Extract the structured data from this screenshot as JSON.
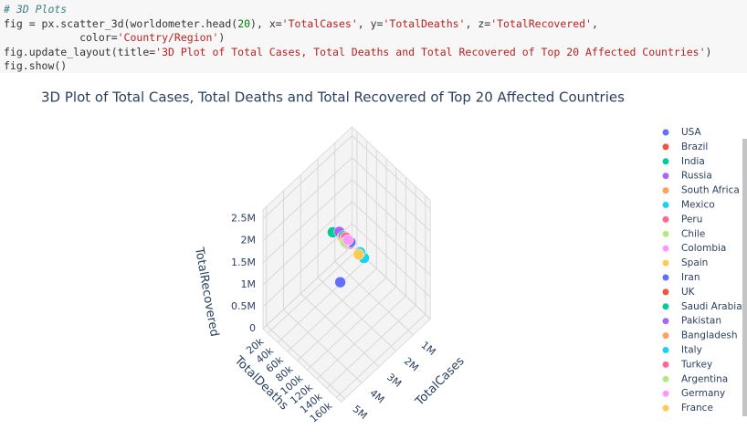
{
  "code": {
    "lines": [
      "# 3D Plots",
      "fig = px.scatter_3d(worldometer.head(20), x='TotalCases', y='TotalDeaths', z='TotalRecovered',",
      "            color='Country/Region')",
      "fig.update_layout(title='3D Plot of Total Cases, Total Deaths and Total Recovered of Top 20 Affected Countries')",
      "fig.show()"
    ]
  },
  "chart_data": {
    "type": "scatter3d",
    "title": "3D Plot of Total Cases, Total Deaths and Total Recovered of Top 20 Affected Countries",
    "x_label": "TotalCases",
    "y_label": "TotalDeaths",
    "z_label": "TotalRecovered",
    "xlim": [
      0,
      5200000
    ],
    "ylim": [
      10000,
      170000
    ],
    "zlim": [
      0,
      2700000
    ],
    "xticks": [
      {
        "value": 1000000,
        "label": "1M"
      },
      {
        "value": 2000000,
        "label": "2M"
      },
      {
        "value": 3000000,
        "label": "3M"
      },
      {
        "value": 4000000,
        "label": "4M"
      },
      {
        "value": 5000000,
        "label": "5M"
      }
    ],
    "yticks": [
      {
        "value": 20000,
        "label": "20k"
      },
      {
        "value": 40000,
        "label": "40k"
      },
      {
        "value": 60000,
        "label": "60k"
      },
      {
        "value": 80000,
        "label": "80k"
      },
      {
        "value": 100000,
        "label": "100k"
      },
      {
        "value": 120000,
        "label": "120k"
      },
      {
        "value": 140000,
        "label": "140k"
      },
      {
        "value": 160000,
        "label": "160k"
      }
    ],
    "zticks": [
      0,
      {
        "value": 500000,
        "label": "0.5M"
      },
      {
        "value": 1000000,
        "label": "1M"
      },
      {
        "value": 1500000,
        "label": "1.5M"
      },
      {
        "value": 2000000,
        "label": "2M"
      },
      {
        "value": 2500000,
        "label": "2.5M"
      }
    ],
    "grid": true,
    "series": [
      {
        "name": "USA",
        "color": "#636efa",
        "x": [
          5030000
        ],
        "y": [
          162000
        ],
        "z": [
          2580000
        ]
      },
      {
        "name": "Brazil",
        "color": "#ef553b",
        "x": [
          2900000
        ],
        "y": [
          98600
        ],
        "z": [
          2050000
        ]
      },
      {
        "name": "India",
        "color": "#00cc96",
        "x": [
          2030000
        ],
        "y": [
          41600
        ],
        "z": [
          1370000
        ]
      },
      {
        "name": "Russia",
        "color": "#ab63fa",
        "x": [
          871000
        ],
        "y": [
          14600
        ],
        "z": [
          676000
        ]
      },
      {
        "name": "South Africa",
        "color": "#ffa15a",
        "x": [
          538000
        ],
        "y": [
          9600
        ],
        "z": [
          387000
        ]
      },
      {
        "name": "Mexico",
        "color": "#19d3f3",
        "x": [
          462000
        ],
        "y": [
          50500
        ],
        "z": [
          308000
        ]
      },
      {
        "name": "Peru",
        "color": "#ff6692",
        "x": [
          455000
        ],
        "y": [
          20400
        ],
        "z": [
          310000
        ]
      },
      {
        "name": "Chile",
        "color": "#b6e880",
        "x": [
          366000
        ],
        "y": [
          9900
        ],
        "z": [
          340000
        ]
      },
      {
        "name": "Colombia",
        "color": "#ff97ff",
        "x": [
          357000
        ],
        "y": [
          11900
        ],
        "z": [
          192000
        ]
      },
      {
        "name": "Spain",
        "color": "#fecb52",
        "x": [
          354000
        ],
        "y": [
          28500
        ],
        "z": [
          null
        ]
      },
      {
        "name": "Iran",
        "color": "#636efa",
        "x": [
          320000
        ],
        "y": [
          17900
        ],
        "z": [
          277000
        ]
      },
      {
        "name": "UK",
        "color": "#ef553b",
        "x": [
          308000
        ],
        "y": [
          46400
        ],
        "z": [
          null
        ]
      },
      {
        "name": "Saudi Arabia",
        "color": "#00cc96",
        "x": [
          284000
        ],
        "y": [
          3000
        ],
        "z": [
          247000
        ]
      },
      {
        "name": "Pakistan",
        "color": "#ab63fa",
        "x": [
          281000
        ],
        "y": [
          6000
        ],
        "z": [
          256000
        ]
      },
      {
        "name": "Bangladesh",
        "color": "#ffa15a",
        "x": [
          249000
        ],
        "y": [
          3300
        ],
        "z": [
          143000
        ]
      },
      {
        "name": "Italy",
        "color": "#19d3f3",
        "x": [
          249000
        ],
        "y": [
          35200
        ],
        "z": [
          201000
        ]
      },
      {
        "name": "Turkey",
        "color": "#ff6692",
        "x": [
          237000
        ],
        "y": [
          5800
        ],
        "z": [
          220000
        ]
      },
      {
        "name": "Argentina",
        "color": "#b6e880",
        "x": [
          229000
        ],
        "y": [
          4200
        ],
        "z": [
          99000
        ]
      },
      {
        "name": "Germany",
        "color": "#ff97ff",
        "x": [
          215000
        ],
        "y": [
          9300
        ],
        "z": [
          196000
        ]
      },
      {
        "name": "France",
        "color": "#fecb52",
        "x": [
          195000
        ],
        "y": [
          30300
        ],
        "z": [
          82000
        ]
      }
    ]
  }
}
